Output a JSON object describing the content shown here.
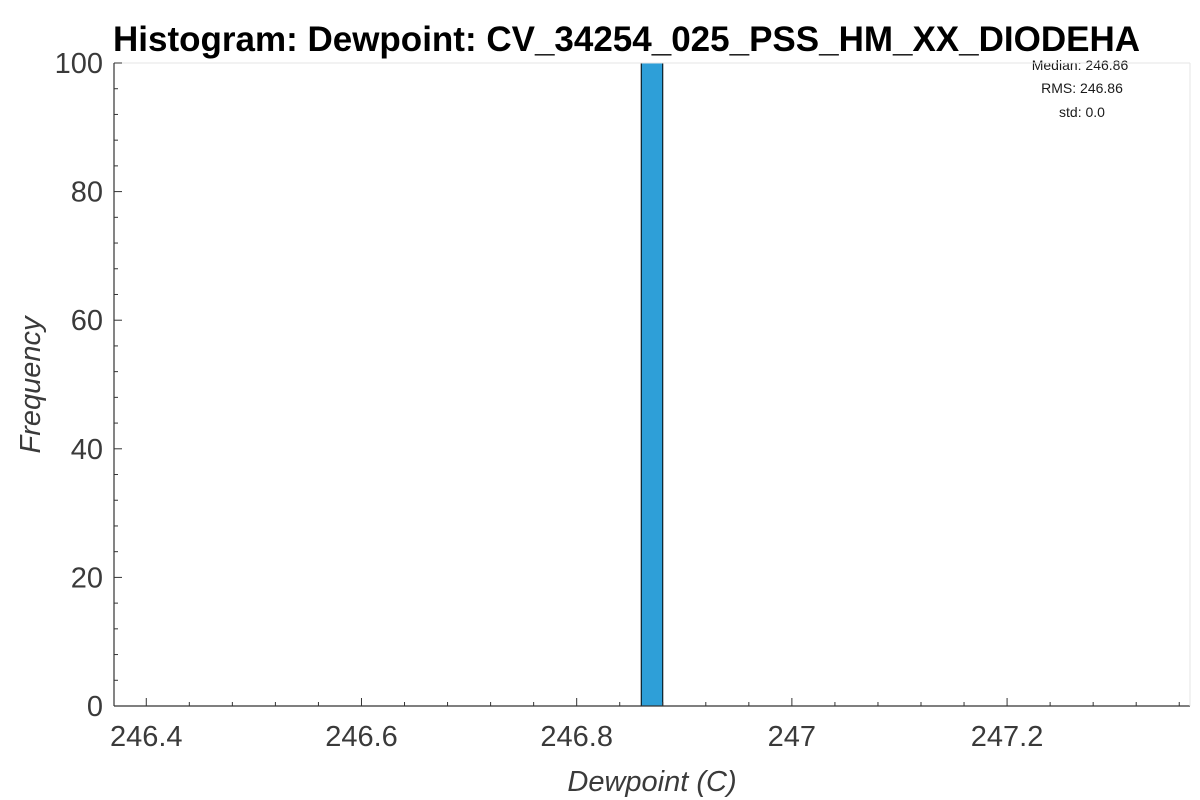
{
  "chart_data": {
    "type": "bar",
    "title": "Histogram: Dewpoint: CV_34254_025_PSS_HM_XX_DIODEHA",
    "xlabel": "Dewpoint (C)",
    "ylabel": "Frequency",
    "xlim": [
      246.37,
      247.37
    ],
    "ylim": [
      0,
      100
    ],
    "x_ticks": [
      246.4,
      246.6,
      246.8,
      247.0,
      247.2
    ],
    "x_tick_labels": [
      "246.4",
      "246.6",
      "246.8",
      "247",
      "247.2"
    ],
    "y_ticks": [
      0,
      20,
      40,
      60,
      80,
      100
    ],
    "y_tick_labels": [
      "0",
      "20",
      "40",
      "60",
      "80",
      "100"
    ],
    "bins": [
      {
        "x_start": 246.86,
        "x_end": 246.88,
        "value": 100
      }
    ],
    "bar_color": "#2e9fd8",
    "bar_edge_color": "#000000",
    "grid": false,
    "stats": {
      "median": "Median: 246.86",
      "rms": "RMS: 246.86",
      "std": "std: 0.0"
    }
  }
}
